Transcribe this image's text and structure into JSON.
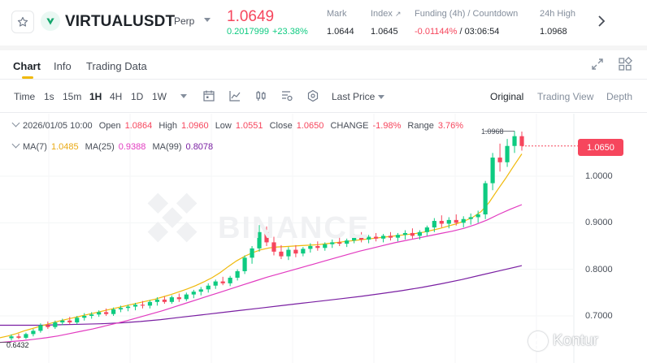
{
  "header": {
    "symbol": "VIRTUALUSDT",
    "badge": "Perp",
    "last_price": "1.0649",
    "change_abs": "0.2017999",
    "change_pct": "+23.38%",
    "stats": {
      "mark_label": "Mark",
      "mark_value": "1.0644",
      "index_label": "Index",
      "index_value": "1.0645",
      "funding_label": "Funding (4h) / Countdown",
      "funding_rate": "-0.01144%",
      "funding_countdown": "/ 03:06:54",
      "high_label": "24h High",
      "high_value": "1.0968"
    },
    "icons": [
      "star-icon",
      "coin-icon",
      "chevron-down-icon",
      "external-link-icon",
      "chevron-right-icon"
    ]
  },
  "tabs": {
    "items": [
      "Chart",
      "Info",
      "Trading Data"
    ],
    "active": "Chart"
  },
  "toolbar": {
    "intervals": [
      "Time",
      "1s",
      "15m",
      "1H",
      "4H",
      "1D",
      "1W"
    ],
    "selected_interval": "1H",
    "price_type": "Last Price",
    "views": [
      "Original",
      "Trading View",
      "Depth"
    ],
    "selected_view": "Original"
  },
  "legend": {
    "date": "2026/01/05 10:00",
    "open_label": "Open",
    "open": "1.0864",
    "high_label": "High",
    "high": "1.0960",
    "low_label": "Low",
    "low": "1.0551",
    "close_label": "Close",
    "close": "1.0650",
    "change_label": "CHANGE",
    "change": "-1.98%",
    "range_label": "Range",
    "range": "3.76%",
    "ma7_label": "MA(7)",
    "ma7": "1.0485",
    "ma25_label": "MA(25)",
    "ma25": "0.9388",
    "ma99_label": "MA(99)",
    "ma99": "0.8078"
  },
  "axis": {
    "current_price_tag": "1.0650",
    "ticks": [
      "1.0000",
      "0.9000",
      "0.8000",
      "0.7000"
    ],
    "high_marker": "1.0968",
    "low_marker": "0.6432"
  },
  "watermarks": {
    "exchange": "BINANCE",
    "source": "Kontur"
  },
  "colors": {
    "up": "#0ecb81",
    "down": "#f6465d",
    "ma7": "#f0b90b",
    "ma25": "#e23bc0",
    "ma99": "#7a1fa2",
    "accent": "#f0b90b"
  },
  "chart_data": {
    "type": "candlestick",
    "interval": "1H",
    "ylim": [
      0.64,
      1.11
    ],
    "ticks": [
      1.0,
      0.9,
      0.8,
      0.7
    ],
    "candles": [
      [
        0.652,
        0.66,
        0.647,
        0.656
      ],
      [
        0.656,
        0.662,
        0.65,
        0.653
      ],
      [
        0.653,
        0.664,
        0.65,
        0.661
      ],
      [
        0.661,
        0.672,
        0.656,
        0.668
      ],
      [
        0.668,
        0.684,
        0.664,
        0.68
      ],
      [
        0.68,
        0.688,
        0.672,
        0.676
      ],
      [
        0.676,
        0.69,
        0.672,
        0.686
      ],
      [
        0.686,
        0.694,
        0.68,
        0.69
      ],
      [
        0.69,
        0.698,
        0.682,
        0.686
      ],
      [
        0.686,
        0.7,
        0.682,
        0.696
      ],
      [
        0.696,
        0.706,
        0.69,
        0.7
      ],
      [
        0.7,
        0.708,
        0.694,
        0.703
      ],
      [
        0.703,
        0.712,
        0.698,
        0.708
      ],
      [
        0.708,
        0.716,
        0.7,
        0.704
      ],
      [
        0.704,
        0.718,
        0.7,
        0.714
      ],
      [
        0.714,
        0.722,
        0.708,
        0.717
      ],
      [
        0.717,
        0.724,
        0.71,
        0.72
      ],
      [
        0.72,
        0.728,
        0.712,
        0.724
      ],
      [
        0.724,
        0.732,
        0.716,
        0.722
      ],
      [
        0.722,
        0.734,
        0.716,
        0.73
      ],
      [
        0.73,
        0.74,
        0.722,
        0.735
      ],
      [
        0.735,
        0.742,
        0.726,
        0.73
      ],
      [
        0.73,
        0.744,
        0.726,
        0.74
      ],
      [
        0.74,
        0.748,
        0.73,
        0.736
      ],
      [
        0.736,
        0.75,
        0.732,
        0.746
      ],
      [
        0.746,
        0.756,
        0.738,
        0.752
      ],
      [
        0.752,
        0.762,
        0.744,
        0.757
      ],
      [
        0.757,
        0.77,
        0.75,
        0.765
      ],
      [
        0.765,
        0.778,
        0.758,
        0.774
      ],
      [
        0.774,
        0.784,
        0.766,
        0.77
      ],
      [
        0.77,
        0.786,
        0.764,
        0.782
      ],
      [
        0.782,
        0.8,
        0.776,
        0.796
      ],
      [
        0.796,
        0.83,
        0.79,
        0.825
      ],
      [
        0.825,
        0.85,
        0.812,
        0.845
      ],
      [
        0.845,
        0.895,
        0.838,
        0.88
      ],
      [
        0.88,
        0.892,
        0.85,
        0.858
      ],
      [
        0.858,
        0.87,
        0.83,
        0.838
      ],
      [
        0.838,
        0.852,
        0.822,
        0.828
      ],
      [
        0.828,
        0.848,
        0.82,
        0.842
      ],
      [
        0.842,
        0.852,
        0.826,
        0.834
      ],
      [
        0.834,
        0.848,
        0.828,
        0.844
      ],
      [
        0.844,
        0.856,
        0.836,
        0.85
      ],
      [
        0.85,
        0.86,
        0.84,
        0.846
      ],
      [
        0.846,
        0.858,
        0.84,
        0.854
      ],
      [
        0.854,
        0.864,
        0.846,
        0.858
      ],
      [
        0.858,
        0.868,
        0.85,
        0.855
      ],
      [
        0.855,
        0.866,
        0.848,
        0.862
      ],
      [
        0.862,
        0.876,
        0.856,
        0.87
      ],
      [
        0.87,
        0.88,
        0.858,
        0.864
      ],
      [
        0.864,
        0.874,
        0.856,
        0.87
      ],
      [
        0.87,
        0.878,
        0.86,
        0.866
      ],
      [
        0.866,
        0.876,
        0.858,
        0.872
      ],
      [
        0.872,
        0.88,
        0.862,
        0.868
      ],
      [
        0.868,
        0.878,
        0.86,
        0.874
      ],
      [
        0.874,
        0.884,
        0.864,
        0.878
      ],
      [
        0.878,
        0.888,
        0.866,
        0.872
      ],
      [
        0.872,
        0.884,
        0.864,
        0.88
      ],
      [
        0.88,
        0.894,
        0.872,
        0.89
      ],
      [
        0.89,
        0.91,
        0.88,
        0.904
      ],
      [
        0.904,
        0.916,
        0.89,
        0.898
      ],
      [
        0.898,
        0.912,
        0.888,
        0.906
      ],
      [
        0.906,
        0.918,
        0.894,
        0.9
      ],
      [
        0.9,
        0.914,
        0.89,
        0.908
      ],
      [
        0.908,
        0.92,
        0.896,
        0.912
      ],
      [
        0.912,
        0.926,
        0.9,
        0.918
      ],
      [
        0.918,
        0.99,
        0.908,
        0.985
      ],
      [
        0.985,
        1.05,
        0.97,
        1.04
      ],
      [
        1.04,
        1.07,
        1.01,
        1.03
      ],
      [
        1.03,
        1.08,
        1.02,
        1.065
      ],
      [
        1.065,
        1.097,
        1.05,
        1.086
      ],
      [
        1.086,
        1.096,
        1.055,
        1.065
      ]
    ],
    "ma7": [
      0.653,
      0.657,
      0.662,
      0.668,
      0.673,
      0.678,
      0.683,
      0.688,
      0.692,
      0.696,
      0.7,
      0.704,
      0.708,
      0.712,
      0.716,
      0.72,
      0.724,
      0.728,
      0.732,
      0.736,
      0.741,
      0.746,
      0.752,
      0.758,
      0.765,
      0.773,
      0.782,
      0.793,
      0.806,
      0.818,
      0.828,
      0.836,
      0.842,
      0.846,
      0.848,
      0.849,
      0.85,
      0.851,
      0.852,
      0.853,
      0.855,
      0.857,
      0.859,
      0.861,
      0.863,
      0.865,
      0.867,
      0.869,
      0.871,
      0.873,
      0.875,
      0.877,
      0.88,
      0.884,
      0.888,
      0.893,
      0.898,
      0.904,
      0.912,
      0.924,
      0.944,
      0.97,
      0.995,
      1.022,
      1.048
    ],
    "ma25": [
      0.643,
      0.645,
      0.647,
      0.65,
      0.653,
      0.657,
      0.662,
      0.667,
      0.672,
      0.678,
      0.684,
      0.69,
      0.697,
      0.704,
      0.711,
      0.719,
      0.727,
      0.735,
      0.743,
      0.751,
      0.759,
      0.767,
      0.775,
      0.783,
      0.79,
      0.797,
      0.804,
      0.811,
      0.818,
      0.825,
      0.832,
      0.839,
      0.845,
      0.851,
      0.857,
      0.862,
      0.867,
      0.872,
      0.877,
      0.882,
      0.888,
      0.896,
      0.906,
      0.918,
      0.929,
      0.939
    ],
    "ma99": [
      0.68,
      0.68,
      0.68,
      0.681,
      0.682,
      0.683,
      0.685,
      0.688,
      0.692,
      0.697,
      0.702,
      0.707,
      0.712,
      0.717,
      0.722,
      0.727,
      0.732,
      0.737,
      0.742,
      0.748,
      0.754,
      0.761,
      0.769,
      0.778,
      0.788,
      0.798,
      0.808
    ]
  }
}
